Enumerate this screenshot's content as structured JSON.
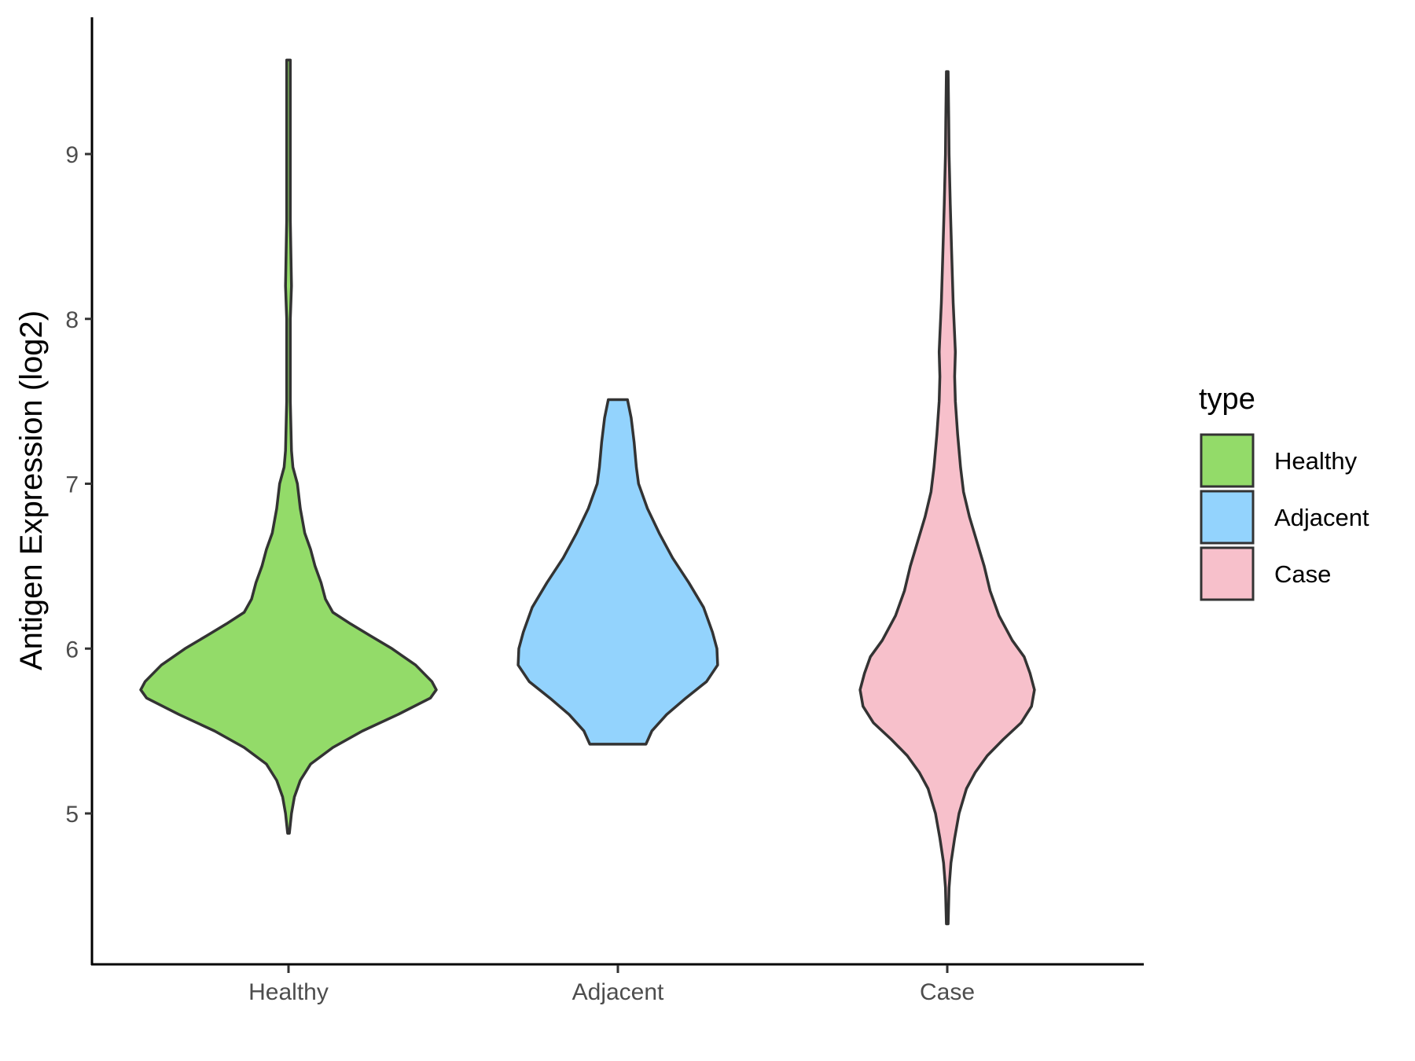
{
  "chart_data": {
    "type": "violin",
    "title": "",
    "xlabel": "",
    "ylabel": "Antigen Expression (log2)",
    "ylim": [
      4.2,
      9.75
    ],
    "yticks": [
      5,
      6,
      7,
      8,
      9
    ],
    "categories": [
      "Healthy",
      "Adjacent",
      "Case"
    ],
    "legend": {
      "title": "type",
      "placement": "right",
      "entries": [
        "Healthy",
        "Adjacent",
        "Case"
      ]
    },
    "colors": {
      "Healthy": "#93DB69",
      "Adjacent": "#93D3FD",
      "Case": "#F7C0CB",
      "outline": "#333333"
    },
    "grid": false,
    "series": [
      {
        "name": "Healthy",
        "profile": [
          [
            9.57,
            0.012
          ],
          [
            9.3,
            0.012
          ],
          [
            9.0,
            0.012
          ],
          [
            8.6,
            0.012
          ],
          [
            8.2,
            0.02
          ],
          [
            8.0,
            0.012
          ],
          [
            7.5,
            0.012
          ],
          [
            7.2,
            0.02
          ],
          [
            7.1,
            0.03
          ],
          [
            7.0,
            0.06
          ],
          [
            6.85,
            0.08
          ],
          [
            6.7,
            0.11
          ],
          [
            6.6,
            0.15
          ],
          [
            6.5,
            0.18
          ],
          [
            6.4,
            0.22
          ],
          [
            6.3,
            0.25
          ],
          [
            6.22,
            0.3
          ],
          [
            6.15,
            0.42
          ],
          [
            6.08,
            0.55
          ],
          [
            6.0,
            0.7
          ],
          [
            5.9,
            0.86
          ],
          [
            5.8,
            0.97
          ],
          [
            5.75,
            1.0
          ],
          [
            5.7,
            0.96
          ],
          [
            5.6,
            0.74
          ],
          [
            5.5,
            0.5
          ],
          [
            5.4,
            0.3
          ],
          [
            5.3,
            0.15
          ],
          [
            5.2,
            0.08
          ],
          [
            5.1,
            0.04
          ],
          [
            5.0,
            0.02
          ],
          [
            4.88,
            0.006
          ]
        ]
      },
      {
        "name": "Adjacent",
        "profile": [
          [
            7.51,
            0.065
          ],
          [
            7.4,
            0.09
          ],
          [
            7.25,
            0.11
          ],
          [
            7.1,
            0.125
          ],
          [
            7.0,
            0.14
          ],
          [
            6.85,
            0.2
          ],
          [
            6.7,
            0.28
          ],
          [
            6.55,
            0.37
          ],
          [
            6.4,
            0.48
          ],
          [
            6.25,
            0.58
          ],
          [
            6.1,
            0.64
          ],
          [
            6.0,
            0.67
          ],
          [
            5.9,
            0.675
          ],
          [
            5.8,
            0.6
          ],
          [
            5.7,
            0.46
          ],
          [
            5.6,
            0.33
          ],
          [
            5.5,
            0.23
          ],
          [
            5.42,
            0.19
          ]
        ]
      },
      {
        "name": "Case",
        "profile": [
          [
            9.5,
            0.006
          ],
          [
            9.2,
            0.01
          ],
          [
            9.0,
            0.012
          ],
          [
            8.7,
            0.02
          ],
          [
            8.4,
            0.03
          ],
          [
            8.1,
            0.04
          ],
          [
            7.9,
            0.05
          ],
          [
            7.8,
            0.055
          ],
          [
            7.65,
            0.05
          ],
          [
            7.5,
            0.055
          ],
          [
            7.3,
            0.07
          ],
          [
            7.1,
            0.09
          ],
          [
            6.95,
            0.11
          ],
          [
            6.8,
            0.15
          ],
          [
            6.65,
            0.2
          ],
          [
            6.5,
            0.25
          ],
          [
            6.35,
            0.29
          ],
          [
            6.2,
            0.35
          ],
          [
            6.05,
            0.44
          ],
          [
            5.95,
            0.52
          ],
          [
            5.85,
            0.56
          ],
          [
            5.75,
            0.59
          ],
          [
            5.65,
            0.57
          ],
          [
            5.55,
            0.5
          ],
          [
            5.45,
            0.38
          ],
          [
            5.35,
            0.27
          ],
          [
            5.25,
            0.19
          ],
          [
            5.15,
            0.13
          ],
          [
            5.0,
            0.08
          ],
          [
            4.85,
            0.05
          ],
          [
            4.7,
            0.025
          ],
          [
            4.55,
            0.012
          ],
          [
            4.33,
            0.006
          ]
        ]
      }
    ]
  }
}
